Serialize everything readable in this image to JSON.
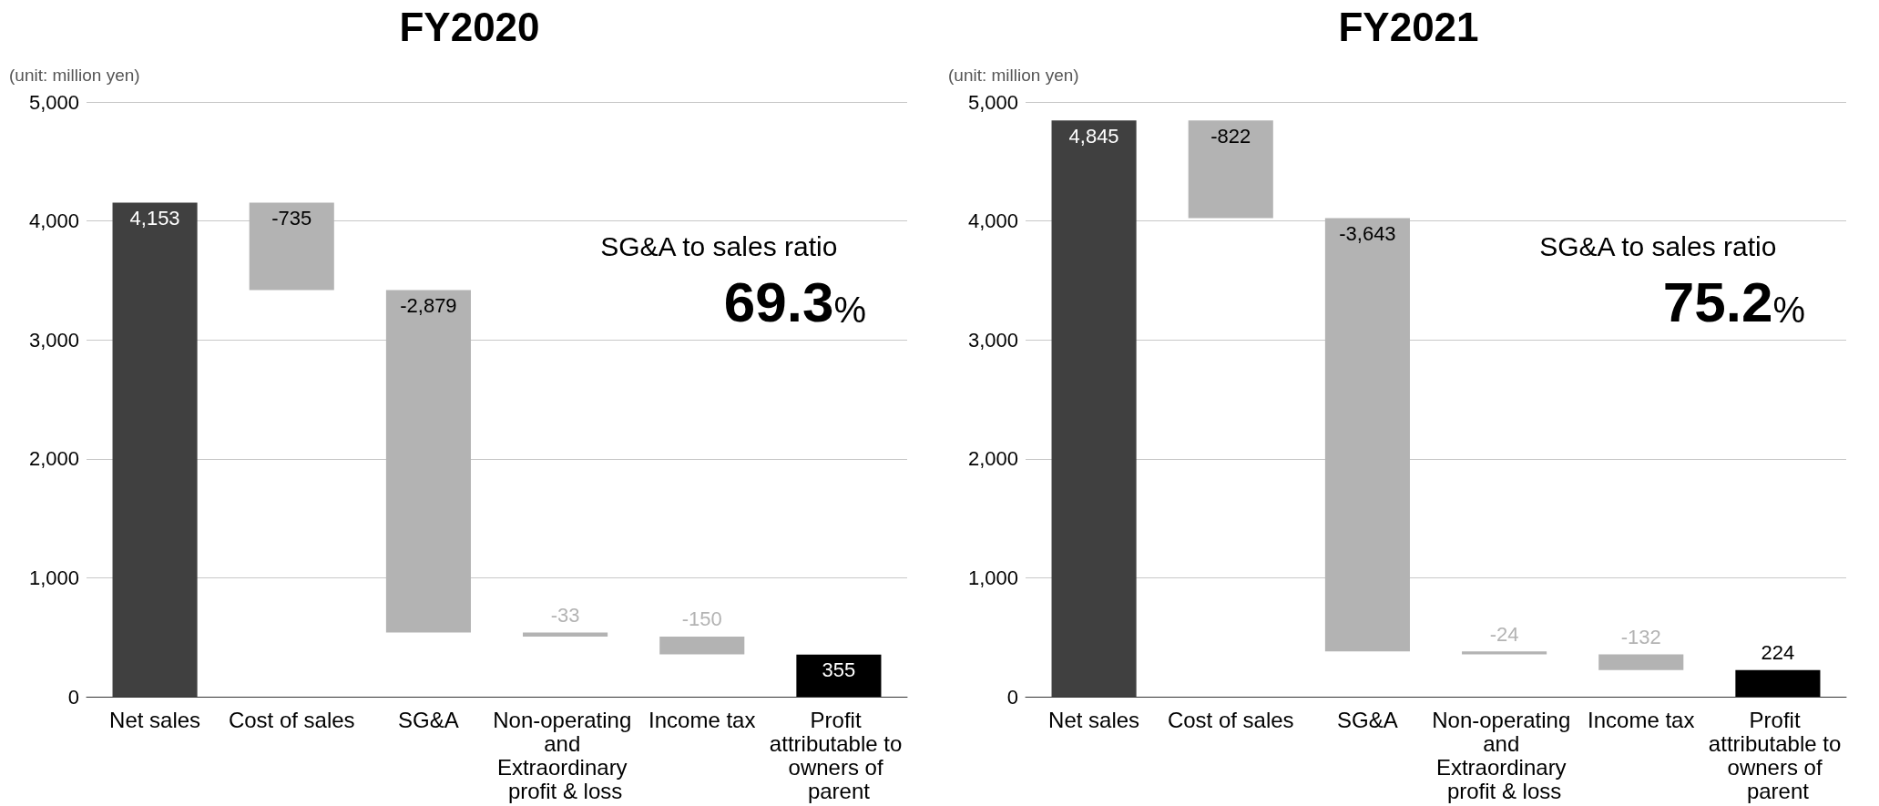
{
  "chart_data": [
    {
      "type": "bar",
      "title": "FY2020",
      "ylabel": "(unit: million yen)",
      "categories": [
        "Net sales",
        "Cost of sales",
        "SG&A",
        "Non-operating and Extraordinary profit & loss",
        "Income tax",
        "Profit attributable to owners of parent"
      ],
      "values": [
        4153,
        -735,
        -2879,
        -33,
        -150,
        355
      ],
      "base": [
        0,
        4153,
        3418,
        539,
        506,
        0
      ],
      "colors": [
        "#404040",
        "#b3b3b3",
        "#b3b3b3",
        "#b3b3b3",
        "#b3b3b3",
        "#000000"
      ],
      "value_labels": [
        "4,153",
        "-735",
        "-2,879",
        "-33",
        "-150",
        "355"
      ],
      "ylim": [
        0,
        5000
      ],
      "yticks": [
        0,
        {
          "value": 1000,
          "label": "1,000"
        },
        {
          "value": 2000,
          "label": "2,000"
        },
        {
          "value": 3000,
          "label": "3,000"
        },
        {
          "value": 4000,
          "label": "4,000"
        },
        {
          "value": 5000,
          "label": "5,000"
        }
      ],
      "grid": "y",
      "annotations": [
        "SG&A to sales ratio",
        "69.3%"
      ]
    },
    {
      "type": "bar",
      "title": "FY2021",
      "ylabel": "(unit: million yen)",
      "categories": [
        "Net sales",
        "Cost of sales",
        "SG&A",
        "Non-operating and Extraordinary profit & loss",
        "Income tax",
        "Profit attributable to owners of parent"
      ],
      "values": [
        4845,
        -822,
        -3643,
        -24,
        -132,
        224
      ],
      "base": [
        0,
        4845,
        4023,
        380,
        356,
        0
      ],
      "colors": [
        "#404040",
        "#b3b3b3",
        "#b3b3b3",
        "#b3b3b3",
        "#b3b3b3",
        "#000000"
      ],
      "value_labels": [
        "4,845",
        "-822",
        "-3,643",
        "-24",
        "-132",
        "224"
      ],
      "ylim": [
        0,
        5000
      ],
      "yticks": [
        0,
        {
          "value": 1000,
          "label": "1,000"
        },
        {
          "value": 2000,
          "label": "2,000"
        },
        {
          "value": 3000,
          "label": "3,000"
        },
        {
          "value": 4000,
          "label": "4,000"
        },
        {
          "value": 5000,
          "label": "5,000"
        }
      ],
      "grid": "y",
      "annotations": [
        "SG&A to sales ratio",
        "75.2%"
      ]
    }
  ]
}
